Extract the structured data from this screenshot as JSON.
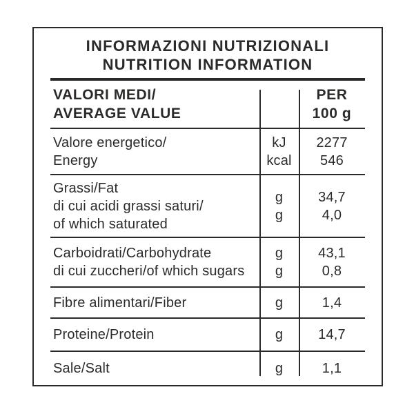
{
  "title": {
    "line1": "INFORMAZIONI NUTRIZIONALI",
    "line2": "NUTRITION INFORMATION"
  },
  "header": {
    "label_line1": "VALORI MEDI/",
    "label_line2": "AVERAGE VALUE",
    "per_line1": "PER",
    "per_line2": "100 g"
  },
  "rows": [
    {
      "label_lines": [
        "Valore energetico/",
        "Energy"
      ],
      "units": [
        "kJ",
        "kcal"
      ],
      "values": [
        "2277",
        "546"
      ]
    },
    {
      "label_lines": [
        "Grassi/Fat",
        "di cui acidi grassi saturi/",
        "of which saturated"
      ],
      "units": [
        "g",
        "g"
      ],
      "values": [
        "34,7",
        "4,0"
      ]
    },
    {
      "label_lines": [
        "Carboidrati/Carbohydrate",
        "di cui zuccheri/of which sugars"
      ],
      "units": [
        "g",
        "g"
      ],
      "values": [
        "43,1",
        "0,8"
      ]
    },
    {
      "label_lines": [
        "Fibre alimentari/Fiber"
      ],
      "units": [
        "g"
      ],
      "values": [
        "1,4"
      ]
    },
    {
      "label_lines": [
        "Proteine/Protein"
      ],
      "units": [
        "g"
      ],
      "values": [
        "14,7"
      ]
    },
    {
      "label_lines": [
        "Sale/Salt"
      ],
      "units": [
        "g"
      ],
      "values": [
        "1,1"
      ]
    }
  ],
  "colors": {
    "text": "#2b2a28",
    "border": "#2b2a28",
    "background": "#ffffff"
  }
}
